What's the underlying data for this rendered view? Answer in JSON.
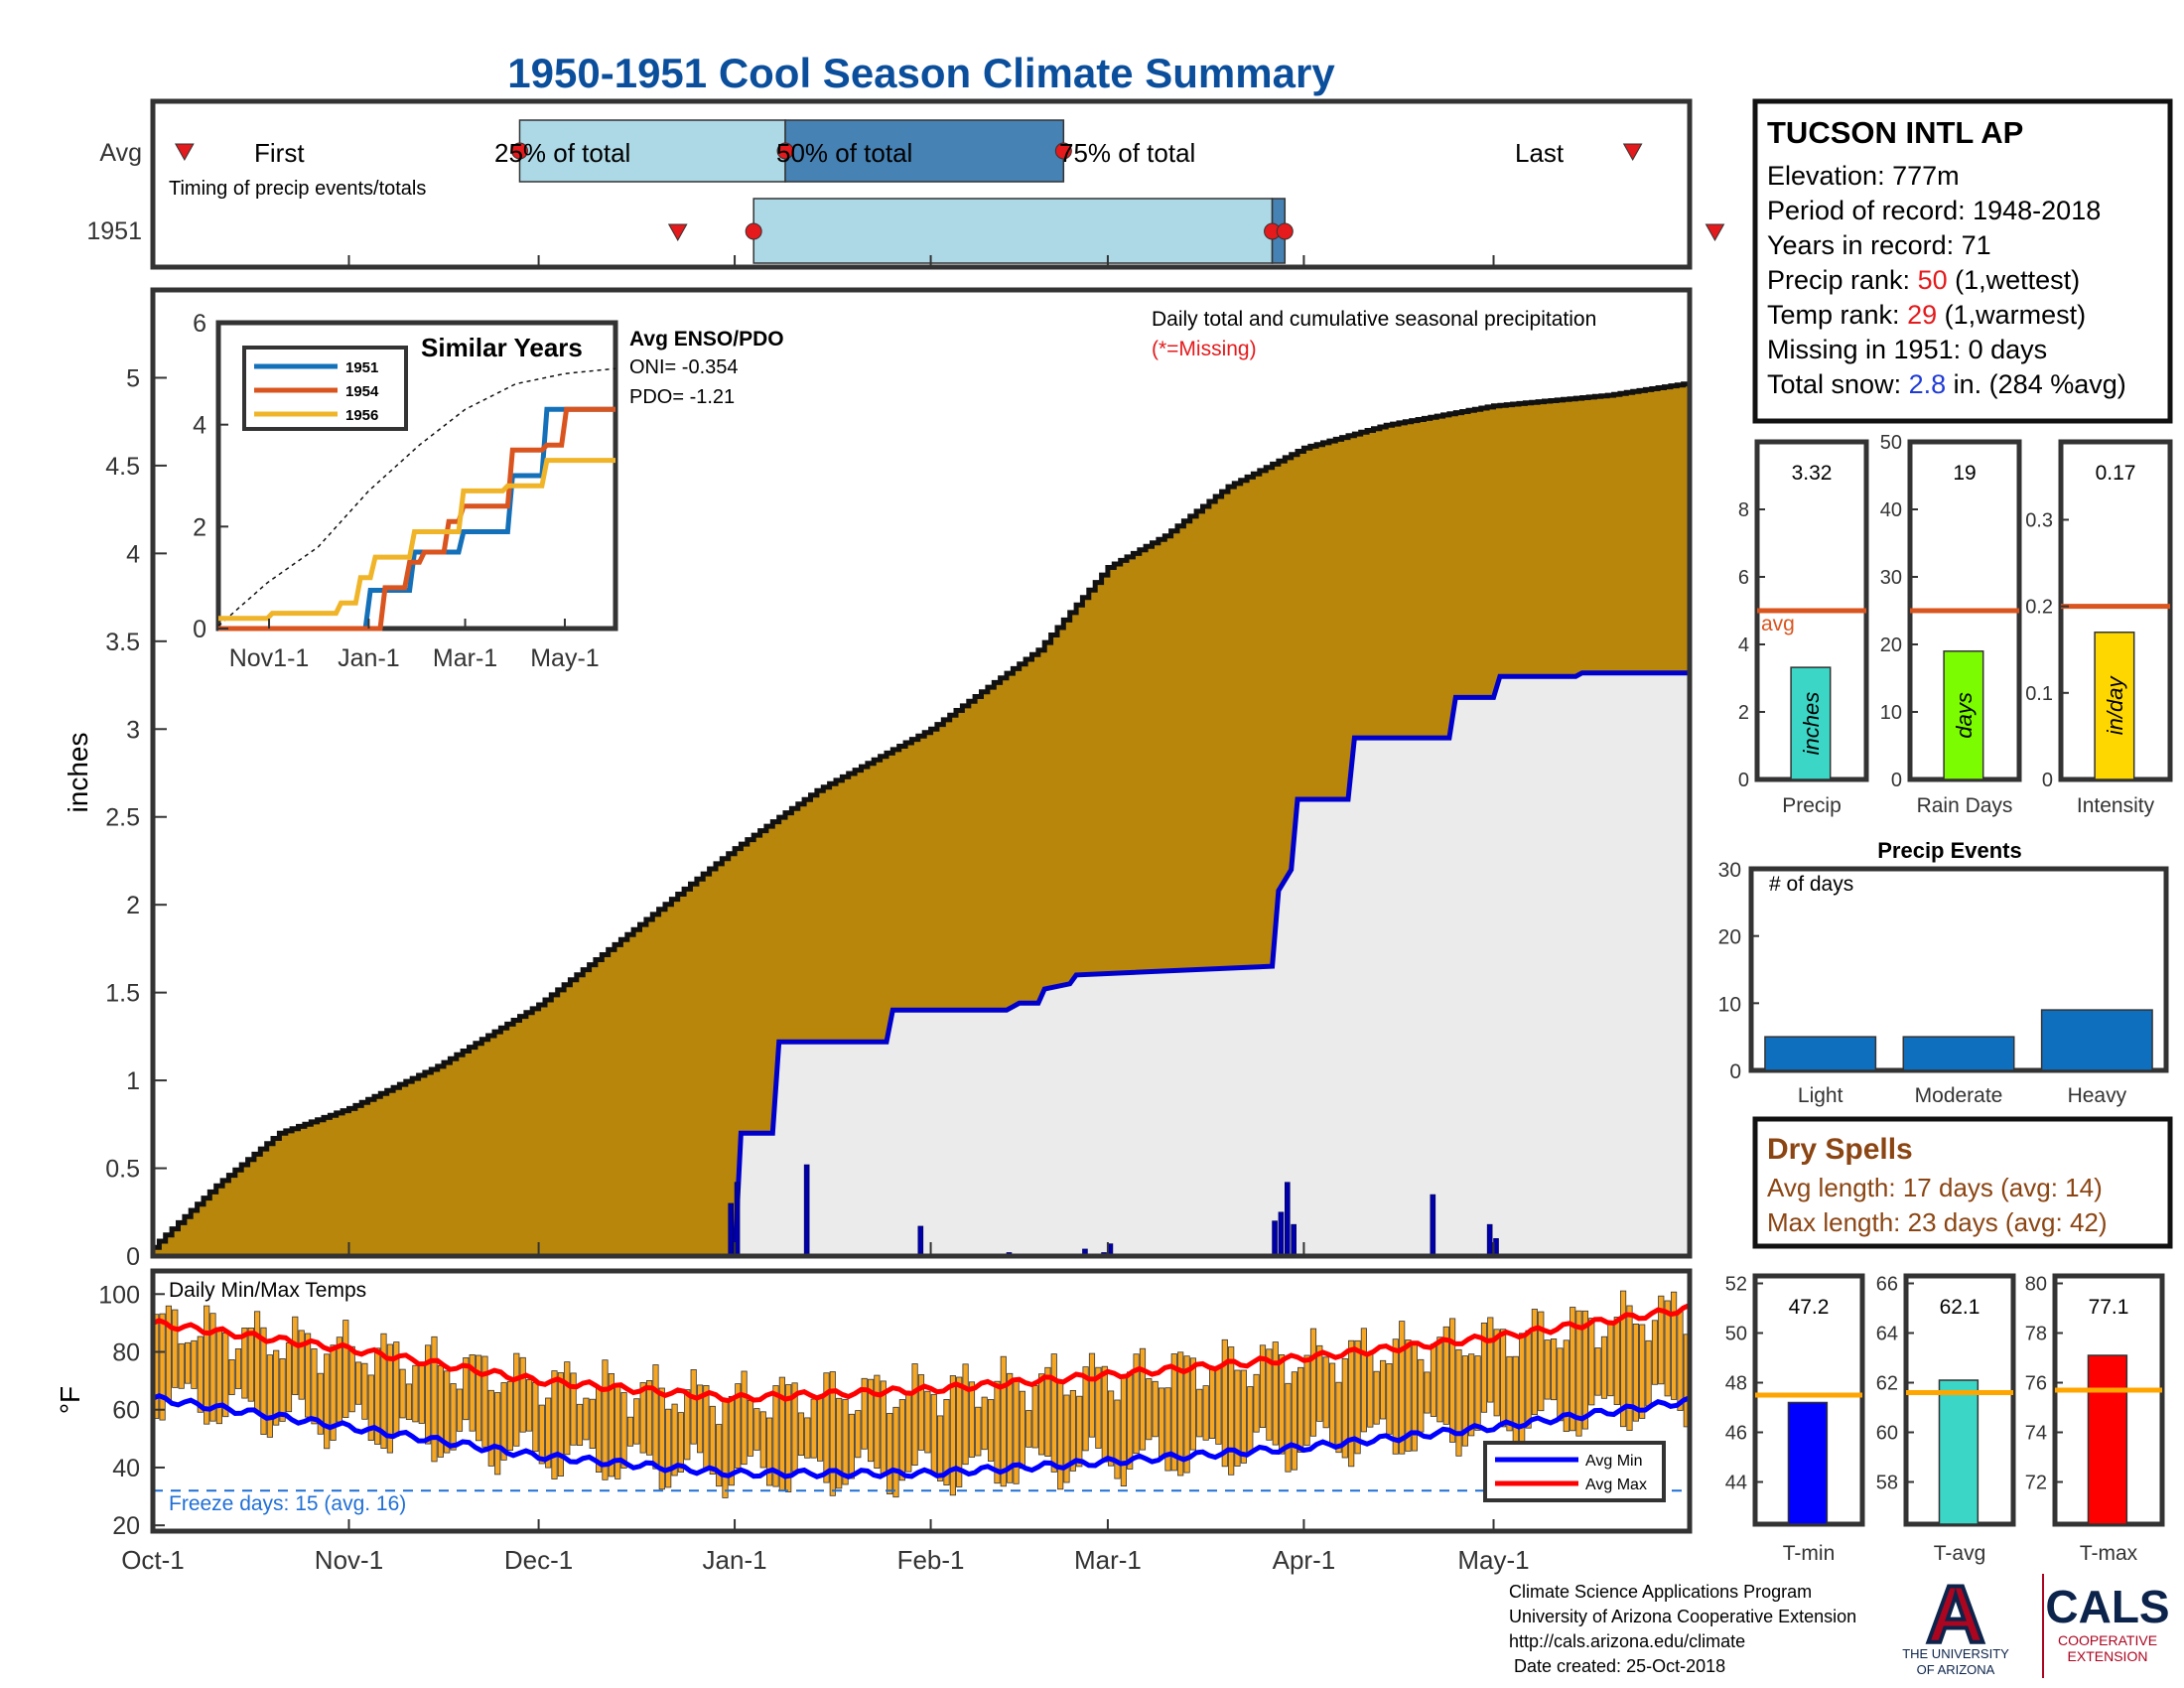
{
  "title": "1950-1951 Cool Season Climate Summary",
  "colors": {
    "title": "#0b4f9c",
    "cum_fill": "#b8860b",
    "rank": "#e41a1c",
    "snow": "#1f3bd6",
    "avg_line": "#d9541e",
    "precip_bar": "#3bd6c6",
    "rain_bar": "#7cfc00",
    "intensity_bar": "#ffd700",
    "event_bar": "#0f6fbf",
    "dry": "#8b4513",
    "tmin": "#0000ff",
    "tavg": "#3bd6c6",
    "tmax": "#ff0000",
    "temp_bar": "#f5a623",
    "tavg_line": "#ffa500",
    "freeze": "#1f6fd6"
  },
  "timing": {
    "rows": [
      "Avg",
      "1951"
    ],
    "caption": "Timing of precip events/totals",
    "avg_labels": [
      "First",
      "25% of total",
      "50% of total",
      "75% of total",
      "Last"
    ],
    "avg_days": {
      "first": 5,
      "p25": 58,
      "p50": 100,
      "p75": 144,
      "last": 234
    },
    "year_days": {
      "first": 83,
      "p25": 95,
      "p50": 177,
      "p75": 179,
      "last": 247
    }
  },
  "station": {
    "name": "TUCSON INTL AP",
    "elevation": "Elevation: 777m",
    "period": "Period of record: 1948-2018",
    "years": "Years in record: 71",
    "precip_rank_label": "Precip rank:",
    "precip_rank_value": "50",
    "precip_rank_suffix": "(1,wettest)",
    "temp_rank_label": "Temp rank:",
    "temp_rank_value": "29",
    "temp_rank_suffix": "(1,warmest)",
    "missing": "Missing in 1951: 0 days",
    "snow_label": "Total snow:",
    "snow_value": "2.8",
    "snow_suffix": "in. (284 %avg)"
  },
  "chart_data": [
    {
      "type": "area",
      "id": "precip-main",
      "title": "Daily total and cumulative seasonal precipitation",
      "subtitle": "(*=Missing)",
      "ylabel": "inches",
      "ylim": [
        0,
        5.5
      ],
      "yticks": [
        "0",
        "0.5",
        "1",
        "1.5",
        "2",
        "2.5",
        "3",
        "3.5",
        "4",
        "4.5",
        "5"
      ],
      "xticks": [
        "Oct-1",
        "Nov-1",
        "Dec-1",
        "Jan-1",
        "Feb-1",
        "Mar-1",
        "Apr-1",
        "May-1"
      ],
      "xtick_days": [
        0,
        31,
        61,
        92,
        123,
        151,
        182,
        212
      ],
      "days_total": 243,
      "avg_cumulative": {
        "day": [
          0,
          10,
          20,
          31,
          45,
          61,
          75,
          92,
          105,
          123,
          140,
          151,
          160,
          170,
          182,
          195,
          212,
          230,
          243
        ],
        "value": [
          0.05,
          0.4,
          0.7,
          0.84,
          1.08,
          1.43,
          1.83,
          2.32,
          2.65,
          3.0,
          3.45,
          3.92,
          4.1,
          4.38,
          4.6,
          4.73,
          4.84,
          4.9,
          4.97
        ]
      },
      "cumulative_1951": {
        "day": [
          0,
          92,
          93,
          98,
          99,
          116,
          117,
          135,
          137,
          140,
          141,
          145,
          146,
          177,
          178,
          180,
          181,
          189,
          190,
          205,
          206,
          212,
          213,
          225,
          226,
          243
        ],
        "value": [
          0,
          0,
          0.7,
          0.7,
          1.22,
          1.22,
          1.4,
          1.4,
          1.44,
          1.44,
          1.52,
          1.55,
          1.6,
          1.65,
          2.08,
          2.2,
          2.6,
          2.6,
          2.95,
          2.95,
          3.18,
          3.18,
          3.3,
          3.3,
          3.32,
          3.32
        ]
      },
      "daily_1951": {
        "day": [
          91,
          92,
          103,
          121,
          135,
          147,
          150,
          151,
          177,
          178,
          179,
          180,
          202,
          211,
          212
        ],
        "value": [
          0.3,
          0.42,
          0.52,
          0.17,
          0.02,
          0.04,
          0.02,
          0.07,
          0.2,
          0.25,
          0.42,
          0.18,
          0.35,
          0.18,
          0.1
        ]
      },
      "inset": {
        "title": "Similar Years",
        "legend": [
          "1951",
          "1954",
          "1956"
        ],
        "yticks": [
          "0",
          "2",
          "4",
          "6"
        ],
        "xticks": [
          "Nov1-1",
          "Jan-1",
          "Mar-1",
          "May-1"
        ],
        "series": [
          {
            "name": "1951",
            "color": "#1470b8",
            "day": [
              0,
              92,
              93,
              105,
              118,
              135,
              150,
              178,
              180,
              200,
              243
            ],
            "value": [
              0,
              0,
              0.75,
              0.75,
              1.5,
              1.5,
              1.9,
              2.6,
              3.0,
              4.3,
              4.3
            ]
          },
          {
            "name": "1954",
            "color": "#d9541e",
            "day": [
              0,
              100,
              101,
              115,
              125,
              140,
              150,
              180,
              200,
              212,
              243
            ],
            "value": [
              0,
              0,
              0.8,
              1.3,
              1.5,
              2.1,
              2.4,
              3.5,
              3.6,
              4.3,
              4.3
            ]
          },
          {
            "name": "1956",
            "color": "#f0b429",
            "day": [
              0,
              30,
              31,
              75,
              85,
              95,
              120,
              150,
              175,
              200,
              243
            ],
            "value": [
              0.2,
              0.2,
              0.3,
              0.5,
              1.0,
              1.4,
              1.9,
              2.7,
              2.8,
              3.3,
              3.3
            ]
          }
        ],
        "avg_dashed": {
          "day": [
            0,
            30,
            61,
            92,
            123,
            151,
            182,
            212,
            243
          ],
          "value": [
            0.05,
            0.9,
            1.6,
            2.7,
            3.6,
            4.3,
            4.8,
            5.0,
            5.1
          ]
        }
      },
      "enso": {
        "heading": "Avg ENSO/PDO",
        "oni": "ONI= -0.354",
        "pdo": "PDO= -1.21"
      }
    },
    {
      "type": "bar",
      "id": "temps-main",
      "title": "Daily Min/Max Temps",
      "ylabel": "°F",
      "ylim": [
        18,
        108
      ],
      "yticks": [
        "20",
        "40",
        "60",
        "80",
        "100"
      ],
      "freeze_label": "Freeze days: 15 (avg. 16)",
      "freeze_line": 32,
      "legend": [
        "Avg Min",
        "Avg Max"
      ],
      "avg_min": {
        "day": [
          0,
          31,
          61,
          92,
          123,
          151,
          182,
          212,
          243
        ],
        "value": [
          64,
          54,
          44,
          38,
          38,
          42,
          47,
          54,
          63
        ]
      },
      "avg_max": {
        "day": [
          0,
          31,
          61,
          92,
          123,
          151,
          182,
          212,
          243
        ],
        "value": [
          90,
          81,
          70,
          64,
          67,
          72,
          78,
          85,
          95
        ]
      }
    },
    {
      "type": "bar",
      "id": "precip-total",
      "categories": [
        "Precip"
      ],
      "values": [
        3.32
      ],
      "value_label": "3.32",
      "avg": 5.0,
      "avg_label": "avg",
      "ylim": [
        0,
        10
      ],
      "yticks": [
        "0",
        "2",
        "4",
        "6",
        "8"
      ],
      "bar_label": "inches"
    },
    {
      "type": "bar",
      "id": "rain-days",
      "categories": [
        "Rain Days"
      ],
      "values": [
        19
      ],
      "value_label": "19",
      "avg": 25,
      "ylim": [
        0,
        50
      ],
      "yticks": [
        "0",
        "10",
        "20",
        "30",
        "40",
        "50"
      ],
      "bar_label": "days"
    },
    {
      "type": "bar",
      "id": "intensity",
      "categories": [
        "Intensity"
      ],
      "values": [
        0.17
      ],
      "value_label": "0.17",
      "avg": 0.2,
      "ylim": [
        0,
        0.39
      ],
      "yticks": [
        "0",
        "0.1",
        "0.2",
        "0.3"
      ],
      "bar_label": "in/day"
    },
    {
      "type": "bar",
      "id": "precip-events",
      "title": "Precip Events",
      "annotation": "# of days",
      "categories": [
        "Light",
        "Moderate",
        "Heavy"
      ],
      "values": [
        5,
        5,
        9
      ],
      "ylim": [
        0,
        30
      ],
      "yticks": [
        "0",
        "10",
        "20",
        "30"
      ]
    },
    {
      "type": "bar",
      "id": "t-min",
      "categories": [
        "T-min"
      ],
      "values": [
        47.2
      ],
      "value_label": "47.2",
      "avg": 47.5,
      "ylim": [
        42.3,
        52.3
      ],
      "yticks": [
        "44",
        "46",
        "48",
        "50",
        "52"
      ]
    },
    {
      "type": "bar",
      "id": "t-avg",
      "categories": [
        "T-avg"
      ],
      "values": [
        62.1
      ],
      "value_label": "62.1",
      "avg": 61.6,
      "ylim": [
        56.3,
        66.3
      ],
      "yticks": [
        "58",
        "60",
        "62",
        "64",
        "66"
      ]
    },
    {
      "type": "bar",
      "id": "t-max",
      "categories": [
        "T-max"
      ],
      "values": [
        77.1
      ],
      "value_label": "77.1",
      "avg": 75.7,
      "ylim": [
        70.3,
        80.3
      ],
      "yticks": [
        "72",
        "74",
        "76",
        "78",
        "80"
      ]
    }
  ],
  "dry_spells": {
    "title": "Dry Spells",
    "avg_length": "Avg length: 17 days (avg: 14)",
    "max_length": "Max length: 23 days (avg: 42)"
  },
  "footer": {
    "line1": "Climate Science Applications Program",
    "line2": "University of Arizona Cooperative Extension",
    "line3": "http://cals.arizona.edu/climate",
    "line4": " Date created: 25-Oct-2018"
  },
  "logos": {
    "ua_letter": "A",
    "ua_text1": "THE UNIVERSITY",
    "ua_text2": "OF ARIZONA",
    "cals": "CALS",
    "cals_text1": "COOPERATIVE",
    "cals_text2": "EXTENSION"
  }
}
